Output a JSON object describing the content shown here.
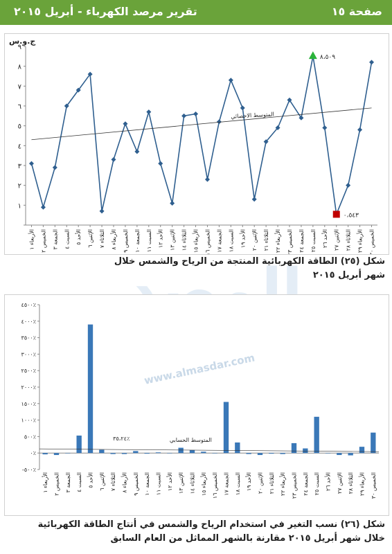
{
  "header": {
    "title": "تقرير مرصد الكهرباء - أبريل ٢٠١٥",
    "page": "صفحة ١٥",
    "color": "#6aa33a"
  },
  "watermark": {
    "text": "المصدر",
    "url_text": "www.almasdar.com"
  },
  "chart_data": [
    {
      "type": "line",
      "unit_label": "ج.و.س",
      "ylim": [
        0,
        9
      ],
      "yticks": [
        "",
        "١",
        "٢",
        "٣",
        "٤",
        "٥",
        "٦",
        "٧",
        "٨",
        "٩"
      ],
      "categories": [
        "الأربعاء ١",
        "الخميس ٢",
        "الجمعة ٣",
        "السبت ٤",
        "الأحد ٥",
        "الإثنين ٦",
        "الثلاثاء ٧",
        "الأربعاء ٨",
        "الخميس ٩",
        "الجمعة ١٠",
        "السبت ١١",
        "الأحد ١٢",
        "الإثنين ١٣",
        "الثلاثاء ١٤",
        "الأربعاء ١٥",
        "الخميس ١٦",
        "الجمعة ١٧",
        "السبت ١٨",
        "الأحد ١٩",
        "الإثنين ٢٠",
        "الثلاثاء ٢١",
        "الأربعاء ٢٢",
        "الخميس ٢٣",
        "الجمعة ٢٤",
        "السبت ٢٥",
        "الأحد ٢٦",
        "الإثنين ٢٧",
        "الثلاثاء ٢٨",
        "الأربعاء ٢٩",
        "الخميس ٣٠"
      ],
      "values": [
        3.1,
        0.9,
        2.9,
        6.0,
        6.8,
        7.6,
        0.7,
        3.3,
        5.1,
        3.7,
        5.7,
        3.1,
        1.1,
        5.5,
        5.6,
        2.3,
        5.2,
        7.3,
        5.9,
        1.3,
        4.2,
        4.9,
        6.3,
        5.4,
        8.509,
        4.9,
        0.543,
        2.0,
        4.8,
        8.2
      ],
      "trend": {
        "label": "المتوسط الاحصائي",
        "start": 4.3,
        "end": 5.9
      },
      "max_label": "٨،٥٠٩",
      "min_label": "٠،٥٤٣",
      "max_color": "#2bb33a",
      "min_color": "#c00000",
      "line_color": "#2f5f8f"
    },
    {
      "type": "bar",
      "ylim": [
        -500,
        4500
      ],
      "yticks": [
        "-٥٠٠٪",
        "٠٪",
        "٥٠٠٪",
        "١٠٠٠٪",
        "١٥٠٠٪",
        "٢٠٠٠٪",
        "٢٥٠٠٪",
        "٣٠٠٠٪",
        "٣٥٠٠٪",
        "٤٠٠٠٪",
        "٤٥٠٠٪"
      ],
      "categories": [
        "الأربعاء ١",
        "الخميس ٢",
        "الجمعة ٣",
        "السبت ٤",
        "الأحد ٥",
        "الإثنين ٦",
        "الثلاثاء ٧",
        "الأربعاء ٨",
        "الخميس ٩",
        "الجمعة ١٠",
        "السبت ١١",
        "الأحد ١٢",
        "الإثنين ١٣",
        "الثلاثاء ١٤",
        "الأربعاء ١٥",
        "الخميس ١٦",
        "الجمعة ١٧",
        "السبت ١٨",
        "الأحد ١٩",
        "الإثنين ٢٠",
        "الثلاثاء ٢١",
        "الأربعاء ٢٢",
        "الخميس ٢٣",
        "الجمعة ٢٤",
        "السبت ٢٥",
        "الأحد ٢٦",
        "الإثنين ٢٧",
        "الثلاثاء ٢٨",
        "الأربعاء ٢٩",
        "الخميس ٣٠"
      ],
      "values": [
        -40,
        -60,
        0,
        530,
        3900,
        100,
        -30,
        -30,
        60,
        -20,
        20,
        -10,
        160,
        90,
        40,
        0,
        1550,
        320,
        -30,
        -60,
        -20,
        -30,
        300,
        140,
        1100,
        -10,
        -60,
        -70,
        190,
        620
      ],
      "average": {
        "label": "المتوسط الحسابي",
        "value_label": "٣٥،٢٤٪"
      },
      "bar_color": "#3a78b8"
    }
  ],
  "captions": {
    "fig25_line1": "شكل (٢٥) الطاقة الكهربائية المنتجة من الرياح والشمس خلال",
    "fig25_line2": "شهر أبريل ٢٠١٥",
    "fig26_line1": "شكل (٢٦) نسب التغير في استخدام الرياح والشمس في أنتاج الطاقة الكهربائية",
    "fig26_line2": "خلال شهر أبريل ٢٠١٥ مقارنة بالشهر المماثل من العام السابق"
  }
}
